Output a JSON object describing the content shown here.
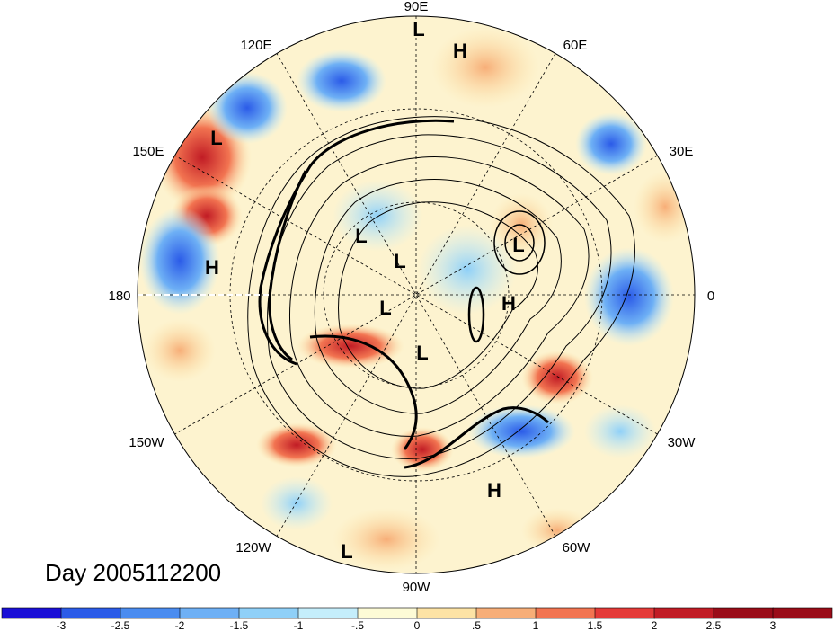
{
  "title": "Day 2005112200",
  "longitude_labels": [
    "90E",
    "60E",
    "30E",
    "0",
    "30W",
    "60W",
    "90W",
    "120W",
    "150W",
    "180",
    "150E",
    "120E"
  ],
  "pressure_centers": [
    {
      "type": "L"
    },
    {
      "type": "H"
    },
    {
      "type": "L"
    },
    {
      "type": "L"
    },
    {
      "type": "L"
    },
    {
      "type": "H"
    },
    {
      "type": "L"
    },
    {
      "type": "H"
    },
    {
      "type": "L"
    },
    {
      "type": "L"
    },
    {
      "type": "H"
    },
    {
      "type": "L"
    }
  ],
  "colorbar": {
    "colors": [
      "#1a0fd6",
      "#2b5be8",
      "#4a8cf0",
      "#6eb0f5",
      "#8fd0f8",
      "#c5eefb",
      "#fdfbd6",
      "#fde3a5",
      "#f7ae78",
      "#f27451",
      "#e43a38",
      "#c11c25",
      "#9a0c18"
    ],
    "tick_labels": [
      "-3",
      "-2.5",
      "-2",
      "-1.5",
      "-1",
      "-.5",
      "0",
      ".5",
      "1",
      "1.5",
      "2",
      "2.5",
      "3"
    ]
  }
}
